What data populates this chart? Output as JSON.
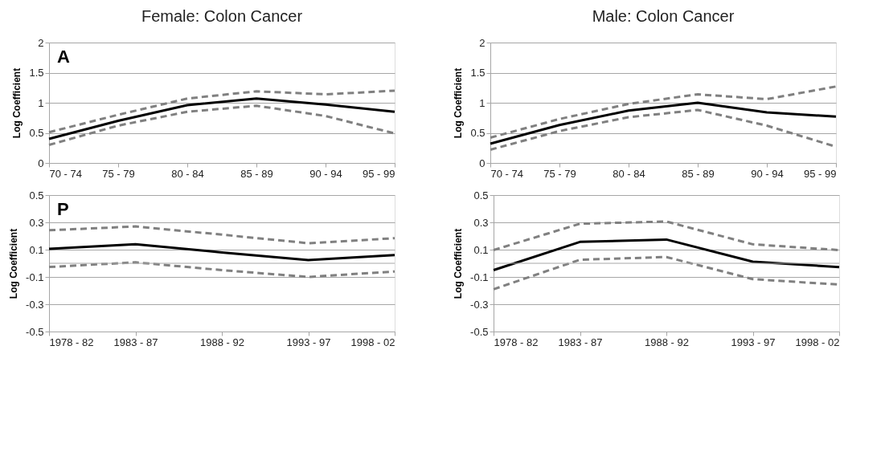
{
  "chart_data": [
    {
      "type": "line",
      "title": "Female: Colon Cancer",
      "ylabel": "Log Coefficient",
      "annotations": [
        "A"
      ],
      "categories": [
        "70 - 74",
        "75 - 79",
        "80 - 84",
        "85 - 89",
        "90 - 94",
        "95 - 99"
      ],
      "series": [
        {
          "color": "#000000",
          "line_style": "solid",
          "values": [
            0.4,
            0.7,
            0.96,
            1.07,
            0.97,
            0.85
          ]
        },
        {
          "color": "#808080",
          "line_style": "dashed",
          "values": [
            0.51,
            0.8,
            1.07,
            1.19,
            1.14,
            1.2
          ]
        },
        {
          "color": "#808080",
          "line_style": "dashed",
          "values": [
            0.3,
            0.62,
            0.85,
            0.95,
            0.78,
            0.49
          ]
        }
      ],
      "ylim": [
        0,
        2
      ],
      "yticks": [
        0,
        0.5,
        1,
        1.5,
        2
      ],
      "grid": "y"
    },
    {
      "type": "line",
      "title": "Male: Colon Cancer",
      "ylabel": "Log Coefficient",
      "categories": [
        "70 - 74",
        "75 - 79",
        "80 - 84",
        "85 - 89",
        "90 - 94",
        "95 - 99"
      ],
      "series": [
        {
          "color": "#000000",
          "line_style": "solid",
          "values": [
            0.32,
            0.63,
            0.87,
            1.0,
            0.84,
            0.77
          ]
        },
        {
          "color": "#808080",
          "line_style": "dashed",
          "values": [
            0.42,
            0.73,
            0.98,
            1.14,
            1.06,
            1.27
          ]
        },
        {
          "color": "#808080",
          "line_style": "dashed",
          "values": [
            0.22,
            0.53,
            0.76,
            0.88,
            0.62,
            0.27
          ]
        }
      ],
      "ylim": [
        0,
        2
      ],
      "yticks": [
        0,
        0.5,
        1,
        1.5,
        2
      ],
      "grid": "y"
    },
    {
      "type": "line",
      "ylabel": "Log Coefficient",
      "annotations": [
        "P"
      ],
      "categories": [
        "1978 - 82",
        "1983 - 87",
        "1988 - 92",
        "1993 - 97",
        "1998 - 02"
      ],
      "series": [
        {
          "color": "#000000",
          "line_style": "solid",
          "values": [
            0.106,
            0.14,
            0.08,
            0.024,
            0.06
          ]
        },
        {
          "color": "#808080",
          "line_style": "dashed",
          "values": [
            0.242,
            0.27,
            0.21,
            0.147,
            0.184
          ]
        },
        {
          "color": "#808080",
          "line_style": "dashed",
          "values": [
            -0.027,
            0.007,
            -0.05,
            -0.1,
            -0.06
          ]
        }
      ],
      "ylim": [
        -0.5,
        0.5
      ],
      "yticks": [
        -0.5,
        -0.3,
        -0.1,
        0.1,
        0.3,
        0.5
      ],
      "grid": "y",
      "ref_lines": [
        {
          "axis": "y",
          "value": 0,
          "color": "#a6a6a6"
        }
      ]
    },
    {
      "type": "line",
      "ylabel": "Log Coefficient",
      "categories": [
        "1978 - 82",
        "1983 - 87",
        "1988 - 92",
        "1993 - 97",
        "1998 - 02"
      ],
      "series": [
        {
          "color": "#000000",
          "line_style": "solid",
          "values": [
            -0.05,
            0.157,
            0.174,
            0.012,
            -0.028
          ]
        },
        {
          "color": "#808080",
          "line_style": "dashed",
          "values": [
            0.097,
            0.29,
            0.306,
            0.139,
            0.097
          ]
        },
        {
          "color": "#808080",
          "line_style": "dashed",
          "values": [
            -0.19,
            0.026,
            0.046,
            -0.116,
            -0.156
          ]
        }
      ],
      "ylim": [
        -0.5,
        0.5
      ],
      "yticks": [
        -0.5,
        -0.3,
        -0.1,
        0.1,
        0.3,
        0.5
      ],
      "grid": "y",
      "ref_lines": [
        {
          "axis": "y",
          "value": 0,
          "color": "#a6a6a6"
        }
      ]
    }
  ]
}
